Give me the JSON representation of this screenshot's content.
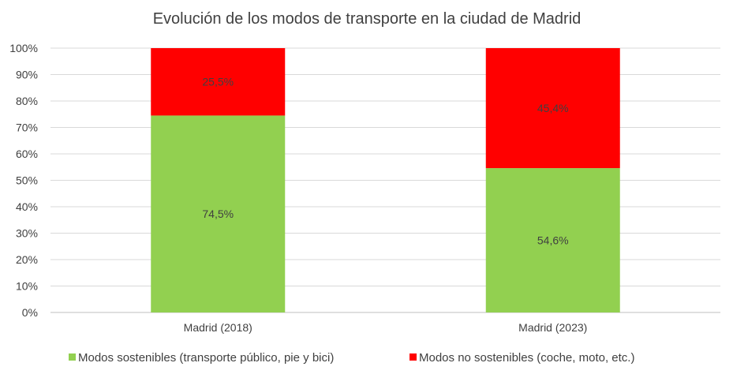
{
  "chart_data": {
    "type": "bar",
    "stacked": true,
    "percent_stacked": true,
    "title": "Evolución de los modos de transporte en la ciudad de Madrid",
    "categories": [
      "Madrid (2018)",
      "Madrid (2023)"
    ],
    "series": [
      {
        "name": "Modos sostenibles (transporte público, pie y bici)",
        "values": [
          74.5,
          54.6
        ],
        "labels": [
          "74,5%",
          "54,6%"
        ],
        "color": "#92d050"
      },
      {
        "name": "Modos no sostenibles (coche, moto, etc.)",
        "values": [
          25.5,
          45.4
        ],
        "labels": [
          "25,5%",
          "45,4%"
        ],
        "color": "#ff0000"
      }
    ],
    "ylim": [
      0,
      100
    ],
    "yticks": [
      0,
      10,
      20,
      30,
      40,
      50,
      60,
      70,
      80,
      90,
      100
    ],
    "ytick_labels": [
      "0%",
      "10%",
      "20%",
      "30%",
      "40%",
      "50%",
      "60%",
      "70%",
      "80%",
      "90%",
      "100%"
    ],
    "grid": true,
    "legend_position": "bottom"
  }
}
